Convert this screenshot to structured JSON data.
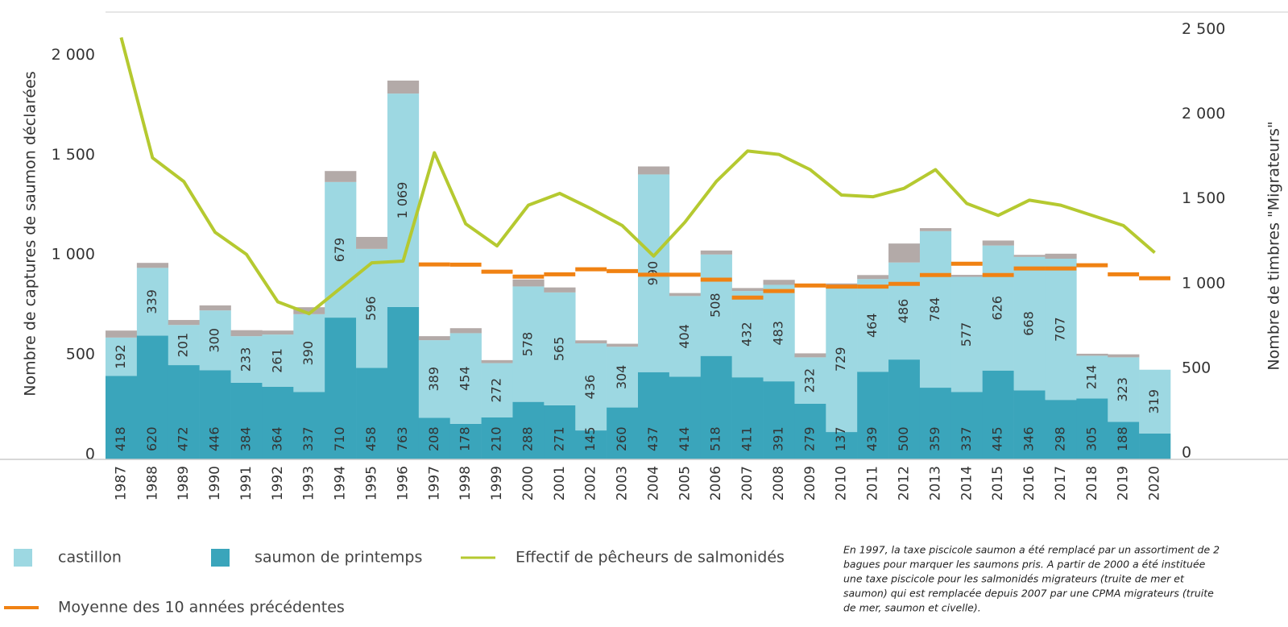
{
  "chart_data": {
    "type": "bar",
    "stacked": true,
    "categories": [
      "1987",
      "1988",
      "1989",
      "1990",
      "1991",
      "1992",
      "1993",
      "1994",
      "1995",
      "1996",
      "1997",
      "1998",
      "1999",
      "2000",
      "2001",
      "2002",
      "2003",
      "2004",
      "2005",
      "2006",
      "2007",
      "2008",
      "2009",
      "2010",
      "2011",
      "2012",
      "2013",
      "2014",
      "2015",
      "2016",
      "2017",
      "2018",
      "2019",
      "2020"
    ],
    "series": [
      {
        "name": "castillon",
        "color": "#9dd8e2",
        "values": [
          192,
          339,
          201,
          300,
          233,
          261,
          390,
          679,
          596,
          1069,
          389,
          454,
          272,
          578,
          565,
          436,
          304,
          990,
          404,
          508,
          432,
          483,
          232,
          729,
          464,
          486,
          784,
          577,
          626,
          668,
          707,
          214,
          323,
          319
        ],
        "value_labels": [
          "192",
          "339",
          "201",
          "300",
          "233",
          "261",
          "390",
          "679",
          "596",
          "1 069",
          "389",
          "454",
          "272",
          "578",
          "565",
          "436",
          "304",
          "990",
          "404",
          "508",
          "432",
          "483",
          "232",
          "729",
          "464",
          "486",
          "784",
          "577",
          "626",
          "668",
          "707",
          "214",
          "323",
          "319"
        ]
      },
      {
        "name": "saumon de printemps",
        "color": "#3aa5bb",
        "values": [
          418,
          620,
          472,
          446,
          384,
          364,
          337,
          710,
          458,
          763,
          208,
          178,
          210,
          288,
          271,
          145,
          260,
          437,
          414,
          518,
          411,
          391,
          279,
          137,
          439,
          500,
          359,
          337,
          445,
          346,
          298,
          305,
          188,
          130
        ],
        "value_labels": [
          "418",
          "620",
          "472",
          "446",
          "384",
          "364",
          "337",
          "710",
          "458",
          "763",
          "208",
          "178",
          "210",
          "288",
          "271",
          "145",
          "260",
          "437",
          "414",
          "518",
          "411",
          "391",
          "279",
          "137",
          "439",
          "500",
          "359",
          "337",
          "445",
          "346",
          "298",
          "305",
          "188",
          null
        ]
      },
      {
        "name": "Effectif de pêcheurs de salmonidés",
        "type": "line",
        "axis": "y2",
        "color": "#b5c930",
        "values": [
          2490,
          1780,
          1640,
          1340,
          1210,
          930,
          860,
          1010,
          1160,
          1170,
          1810,
          1390,
          1260,
          1500,
          1570,
          1480,
          1380,
          1200,
          1400,
          1640,
          1820,
          1800,
          1710,
          1560,
          1550,
          1600,
          1710,
          1510,
          1440,
          1530,
          1500,
          1440,
          1380,
          1220
        ]
      },
      {
        "name": "Moyenne des 10 années précédentes",
        "type": "step",
        "color": "#f08213",
        "values": [
          null,
          null,
          null,
          null,
          null,
          null,
          null,
          null,
          null,
          null,
          976,
          975,
          940,
          915,
          927,
          952,
          943,
          925,
          925,
          900,
          810,
          843,
          871,
          865,
          865,
          879,
          923,
          980,
          923,
          956,
          956,
          972,
          927,
          907
        ]
      },
      {
        "color": "#b3aaa8",
        "values": [
          35,
          25,
          25,
          25,
          30,
          20,
          35,
          55,
          60,
          65,
          20,
          25,
          15,
          35,
          25,
          15,
          15,
          40,
          15,
          20,
          15,
          25,
          20,
          15,
          20,
          95,
          15,
          10,
          25,
          10,
          25,
          10,
          15,
          0
        ]
      }
    ],
    "ylim": [
      0,
      2240
    ],
    "yticks": [
      0,
      500,
      {
        "value": 1000,
        "label": "1 000"
      },
      {
        "value": 1500,
        "label": "1 500"
      },
      {
        "value": 2000,
        "label": "2 000"
      }
    ],
    "y2lim": [
      0,
      2640
    ],
    "y2ticks": [
      0,
      500,
      {
        "value": 1000,
        "label": "1 000"
      },
      {
        "value": 1500,
        "label": "1 500"
      },
      {
        "value": 2000,
        "label": "2 000"
      },
      {
        "value": 2500,
        "label": "2 500"
      }
    ],
    "y_label": "Nombre de captures de saumon déclarées",
    "y2_label": "Nombre de timbres \"Migrateurs\"",
    "grid": false,
    "note": [
      "En 1997, la taxe piscicole saumon a été remplacé par un assortiment de 2",
      "bagues pour marquer les saumons pris. A partir de 2000 a été instituée",
      "une taxe piscicole pour les salmonidés migrateurs (truite de mer et",
      "saumon) qui est remplacée depuis 2007 par une CPMA migrateurs (truite",
      "de mer, saumon et civelle)."
    ]
  }
}
